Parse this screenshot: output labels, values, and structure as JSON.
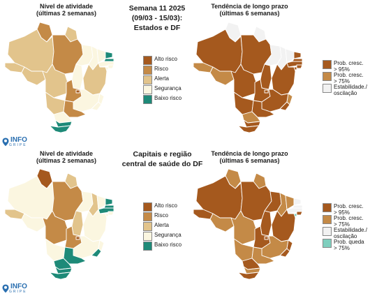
{
  "colors": {
    "alto_risco": "#a5591e",
    "risco": "#c48a47",
    "alerta": "#e2c48c",
    "seguranca": "#fbf6e0",
    "baixo_risco": "#1e8a78",
    "prob_cresc_95": "#a5591e",
    "prob_cresc_75": "#c48a47",
    "estabilidade": "#f2f2f2",
    "prob_queda_75": "#7fcfbe"
  },
  "center": {
    "top": [
      "Semana 11 2025",
      "(09/03 - 15/03):",
      "Estados e DF"
    ],
    "bottom": [
      "Capitais e região",
      "central de saúde do DF"
    ]
  },
  "panels": {
    "top_left": {
      "title": [
        "Nível de atividade",
        "(últimas 2 semanas)"
      ]
    },
    "top_right": {
      "title": [
        "Tendência de longo prazo",
        "(últimas 6 semanas)"
      ]
    },
    "bottom_left": {
      "title": [
        "Nível de atividade",
        "(últimas 2 semanas)"
      ]
    },
    "bottom_right": {
      "title": [
        "Tendência de longo prazo",
        "(últimas 6 semanas)"
      ]
    }
  },
  "legend_activity": [
    {
      "label": "Alto risco",
      "color": "#a5591e"
    },
    {
      "label": "Risco",
      "color": "#c48a47"
    },
    {
      "label": "Alerta",
      "color": "#e2c48c"
    },
    {
      "label": "Segurança",
      "color": "#fbf6e0"
    },
    {
      "label": "Baixo risco",
      "color": "#1e8a78"
    }
  ],
  "legend_trend_top": [
    {
      "label": [
        "Prob. cresc.",
        "> 95%"
      ],
      "color": "#a5591e"
    },
    {
      "label": [
        "Prob. cresc.",
        "> 75%"
      ],
      "color": "#c48a47"
    },
    {
      "label": [
        "Estabilidade./",
        "oscilação"
      ],
      "color": "#f2f2f2"
    }
  ],
  "legend_trend_bottom": [
    {
      "label": [
        "Prob. cresc.",
        "> 95%"
      ],
      "color": "#a5591e"
    },
    {
      "label": [
        "Prob. cresc.",
        "> 75%"
      ],
      "color": "#c48a47"
    },
    {
      "label": [
        "Estabilidade./",
        "oscilação"
      ],
      "color": "#f2f2f2"
    },
    {
      "label": [
        "Prob. queda",
        "> 75%"
      ],
      "color": "#7fcfbe"
    }
  ],
  "logo": {
    "text": "INFO",
    "sub": "GRIPE"
  },
  "map_states": {
    "top_left": {
      "AM": "alerta",
      "RR": "risco",
      "AP": "alerta",
      "PA": "risco",
      "AC": "alerta",
      "RO": "alerta",
      "MT": "alerta",
      "TO": "seguranca",
      "MA": "seguranca",
      "PI": "seguranca",
      "CE": "seguranca",
      "RN": "baixo_risco",
      "PB": "baixo_risco",
      "PE": "seguranca",
      "AL": "seguranca",
      "SE": "seguranca",
      "BA": "alerta",
      "MS": "alerta",
      "GO": "risco",
      "DF": "alto_risco",
      "MG": "seguranca",
      "ES": "seguranca",
      "RJ": "seguranca",
      "SP": "risco",
      "PR": "seguranca",
      "SC": "baixo_risco",
      "RS": "baixo_risco"
    },
    "top_right": {
      "AM": "alto_risco",
      "RR": "estabilidade",
      "AP": "estabilidade",
      "PA": "alto_risco",
      "AC": "risco",
      "RO": "risco",
      "MT": "alto_risco",
      "TO": "alto_risco",
      "MA": "estabilidade",
      "PI": "estabilidade",
      "CE": "estabilidade",
      "RN": "alto_risco",
      "PB": "alto_risco",
      "PE": "alto_risco",
      "AL": "alto_risco",
      "SE": "alto_risco",
      "BA": "alto_risco",
      "MS": "alto_risco",
      "GO": "alto_risco",
      "DF": "alto_risco",
      "MG": "alto_risco",
      "ES": "risco",
      "RJ": "alto_risco",
      "SP": "alto_risco",
      "PR": "risco",
      "SC": "alto_risco",
      "RS": "alto_risco"
    },
    "bottom_left": {
      "AM": "seguranca",
      "RR": "alto_risco",
      "AP": "alerta",
      "PA": "risco",
      "AC": "alerta",
      "RO": "seguranca",
      "MT": "risco",
      "TO": "alerta",
      "MA": "seguranca",
      "PI": "alerta",
      "CE": "seguranca",
      "RN": "baixo_risco",
      "PB": "baixo_risco",
      "PE": "baixo_risco",
      "AL": "seguranca",
      "SE": "seguranca",
      "BA": "seguranca",
      "MS": "seguranca",
      "GO": "risco",
      "DF": "alto_risco",
      "MG": "seguranca",
      "ES": "seguranca",
      "RJ": "baixo_risco",
      "SP": "baixo_risco",
      "PR": "baixo_risco",
      "SC": "baixo_risco",
      "RS": "baixo_risco"
    },
    "bottom_right": {
      "AM": "alto_risco",
      "RR": "risco",
      "AP": "risco",
      "PA": "alto_risco",
      "AC": "alto_risco",
      "RO": "risco",
      "MT": "risco",
      "TO": "alto_risco",
      "MA": "alto_risco",
      "PI": "risco",
      "CE": "risco",
      "RN": "estabilidade",
      "PB": "estabilidade",
      "PE": "estabilidade",
      "AL": "alto_risco",
      "SE": "prob_queda_75",
      "BA": "alto_risco",
      "MS": "risco",
      "GO": "alto_risco",
      "DF": "alto_risco",
      "MG": "risco",
      "ES": "alto_risco",
      "RJ": "alto_risco",
      "SP": "risco",
      "PR": "alto_risco",
      "SC": "risco",
      "RS": "alto_risco"
    }
  }
}
